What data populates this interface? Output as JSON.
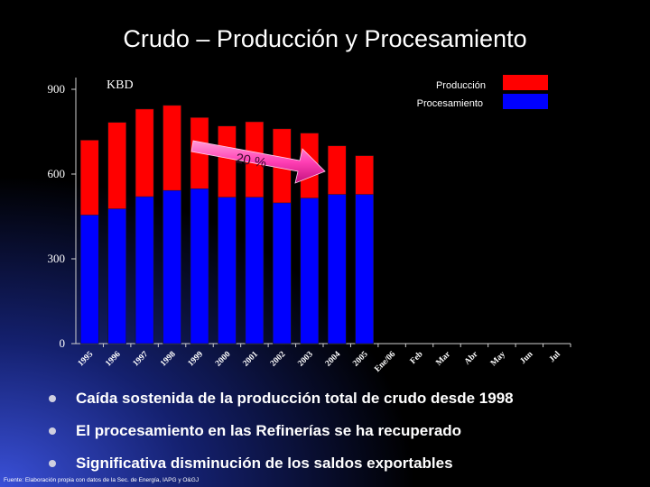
{
  "slide": {
    "title": "Crudo – Producción y Procesamiento",
    "bullets": [
      "Caída sostenida de la producción total de crudo desde 1998",
      "El procesamiento en las Refinerías se ha recuperado",
      "Significativa disminución de los saldos exportables"
    ],
    "footnote": "Fuente: Elaboración propia con datos de la Sec. de Energía, IAPG y O&GJ"
  },
  "chart_data": {
    "type": "bar",
    "unit_label": "KBD",
    "categories": [
      "1995",
      "1996",
      "1997",
      "1998",
      "1999",
      "2000",
      "2001",
      "2002",
      "2003",
      "2004",
      "2005",
      "Ene/06",
      "Feb",
      "Mar",
      "Abr",
      "May",
      "Jun",
      "Jul"
    ],
    "series": [
      {
        "name": "Producción",
        "color": "#ff0000",
        "values": [
          720,
          783,
          830,
          843,
          800,
          770,
          785,
          760,
          745,
          700,
          665,
          null,
          null,
          null,
          null,
          null,
          null,
          null
        ]
      },
      {
        "name": "Procesamiento",
        "color": "#0000ff",
        "values": [
          455,
          477,
          520,
          542,
          548,
          518,
          518,
          498,
          515,
          528,
          528,
          null,
          null,
          null,
          null,
          null,
          null,
          null
        ]
      }
    ],
    "yticks": [
      0,
      300,
      600,
      900
    ],
    "ylim": [
      0,
      950
    ],
    "annotation": {
      "text": "20 %",
      "color": "#ff3fb4"
    },
    "legend": "top-right"
  }
}
